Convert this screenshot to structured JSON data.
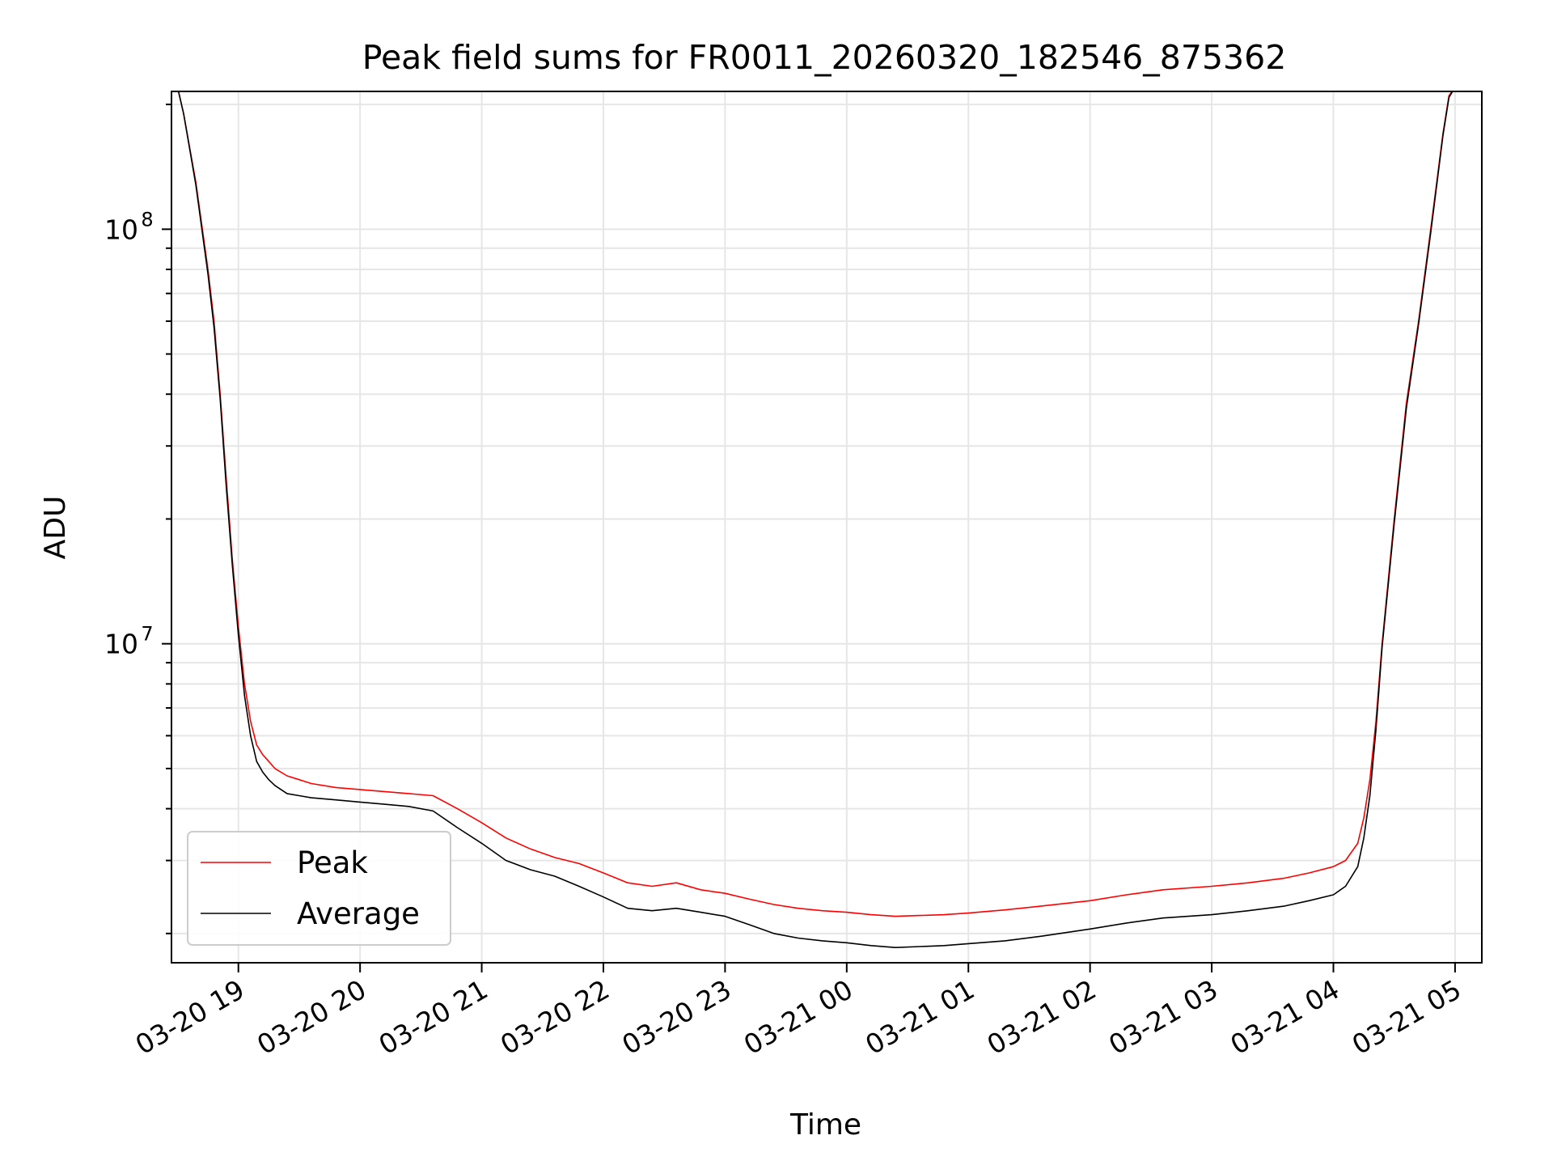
{
  "chart_data": {
    "type": "line",
    "title": "Peak field sums for FR0011_20260320_182546_875362",
    "xlabel": "Time",
    "ylabel": "ADU",
    "yscale": "log",
    "ylim": [
      1700000,
      215000000
    ],
    "xlim_hours": [
      -0.55,
      10.22
    ],
    "grid": true,
    "legend_position": "lower-left",
    "x_ticks": [
      {
        "h": 0,
        "label": "03-20 19"
      },
      {
        "h": 1,
        "label": "03-20 20"
      },
      {
        "h": 2,
        "label": "03-20 21"
      },
      {
        "h": 3,
        "label": "03-20 22"
      },
      {
        "h": 4,
        "label": "03-20 23"
      },
      {
        "h": 5,
        "label": "03-21 00"
      },
      {
        "h": 6,
        "label": "03-21 01"
      },
      {
        "h": 7,
        "label": "03-21 02"
      },
      {
        "h": 8,
        "label": "03-21 03"
      },
      {
        "h": 9,
        "label": "03-21 04"
      },
      {
        "h": 10,
        "label": "03-21 05"
      }
    ],
    "y_major_ticks": [
      {
        "value": 10000000,
        "base": "10",
        "exp": "7"
      },
      {
        "value": 100000000,
        "base": "10",
        "exp": "8"
      }
    ],
    "series": [
      {
        "name": "Peak",
        "color": "#ff0000",
        "hours": [
          -0.5,
          -0.45,
          -0.35,
          -0.25,
          -0.2,
          -0.15,
          -0.1,
          -0.05,
          0.0,
          0.05,
          0.1,
          0.15,
          0.2,
          0.25,
          0.3,
          0.4,
          0.5,
          0.6,
          0.8,
          1.0,
          1.2,
          1.4,
          1.6,
          1.8,
          2.0,
          2.2,
          2.4,
          2.6,
          2.8,
          3.0,
          3.2,
          3.4,
          3.6,
          3.8,
          4.0,
          4.2,
          4.4,
          4.6,
          4.8,
          5.0,
          5.2,
          5.4,
          5.6,
          5.8,
          6.0,
          6.3,
          6.6,
          7.0,
          7.3,
          7.6,
          8.0,
          8.3,
          8.6,
          8.8,
          9.0,
          9.1,
          9.2,
          9.25,
          9.3,
          9.35,
          9.4,
          9.5,
          9.6,
          9.7,
          9.8,
          9.85,
          9.9,
          9.95,
          10.0
        ],
        "values": [
          220000000,
          190000000,
          130000000,
          80000000,
          60000000,
          40000000,
          25000000,
          16000000,
          11000000,
          8000000,
          6500000,
          5700000,
          5400000,
          5200000,
          5000000,
          4800000,
          4700000,
          4600000,
          4500000,
          4450000,
          4400000,
          4350000,
          4300000,
          4000000,
          3700000,
          3400000,
          3200000,
          3050000,
          2950000,
          2800000,
          2650000,
          2600000,
          2650000,
          2550000,
          2500000,
          2420000,
          2350000,
          2300000,
          2270000,
          2250000,
          2220000,
          2200000,
          2210000,
          2220000,
          2240000,
          2280000,
          2330000,
          2400000,
          2480000,
          2550000,
          2600000,
          2650000,
          2720000,
          2800000,
          2900000,
          3000000,
          3300000,
          3800000,
          4700000,
          6500000,
          10000000,
          20000000,
          38000000,
          60000000,
          100000000,
          130000000,
          170000000,
          210000000,
          220000000
        ]
      },
      {
        "name": "Average",
        "color": "#000000",
        "hours": [
          -0.5,
          -0.45,
          -0.35,
          -0.25,
          -0.2,
          -0.15,
          -0.1,
          -0.05,
          0.0,
          0.05,
          0.1,
          0.15,
          0.2,
          0.25,
          0.3,
          0.4,
          0.5,
          0.6,
          0.8,
          1.0,
          1.2,
          1.4,
          1.6,
          1.8,
          2.0,
          2.2,
          2.4,
          2.6,
          2.8,
          3.0,
          3.2,
          3.4,
          3.6,
          3.8,
          4.0,
          4.2,
          4.4,
          4.6,
          4.8,
          5.0,
          5.2,
          5.4,
          5.6,
          5.8,
          6.0,
          6.3,
          6.6,
          7.0,
          7.3,
          7.6,
          8.0,
          8.3,
          8.6,
          8.8,
          9.0,
          9.1,
          9.2,
          9.25,
          9.3,
          9.35,
          9.4,
          9.5,
          9.6,
          9.7,
          9.8,
          9.85,
          9.9,
          9.95,
          10.0
        ],
        "values": [
          220000000,
          190000000,
          128000000,
          78000000,
          58000000,
          39000000,
          24000000,
          15500000,
          10500000,
          7500000,
          6000000,
          5200000,
          4900000,
          4700000,
          4550000,
          4350000,
          4300000,
          4250000,
          4200000,
          4150000,
          4100000,
          4050000,
          3950000,
          3600000,
          3300000,
          3000000,
          2850000,
          2750000,
          2600000,
          2450000,
          2300000,
          2270000,
          2300000,
          2250000,
          2200000,
          2100000,
          2000000,
          1950000,
          1920000,
          1900000,
          1870000,
          1850000,
          1860000,
          1870000,
          1890000,
          1920000,
          1970000,
          2050000,
          2120000,
          2180000,
          2220000,
          2270000,
          2330000,
          2400000,
          2480000,
          2600000,
          2900000,
          3400000,
          4300000,
          6200000,
          9800000,
          19500000,
          37000000,
          59000000,
          98000000,
          128000000,
          168000000,
          208000000,
          220000000
        ]
      }
    ]
  }
}
